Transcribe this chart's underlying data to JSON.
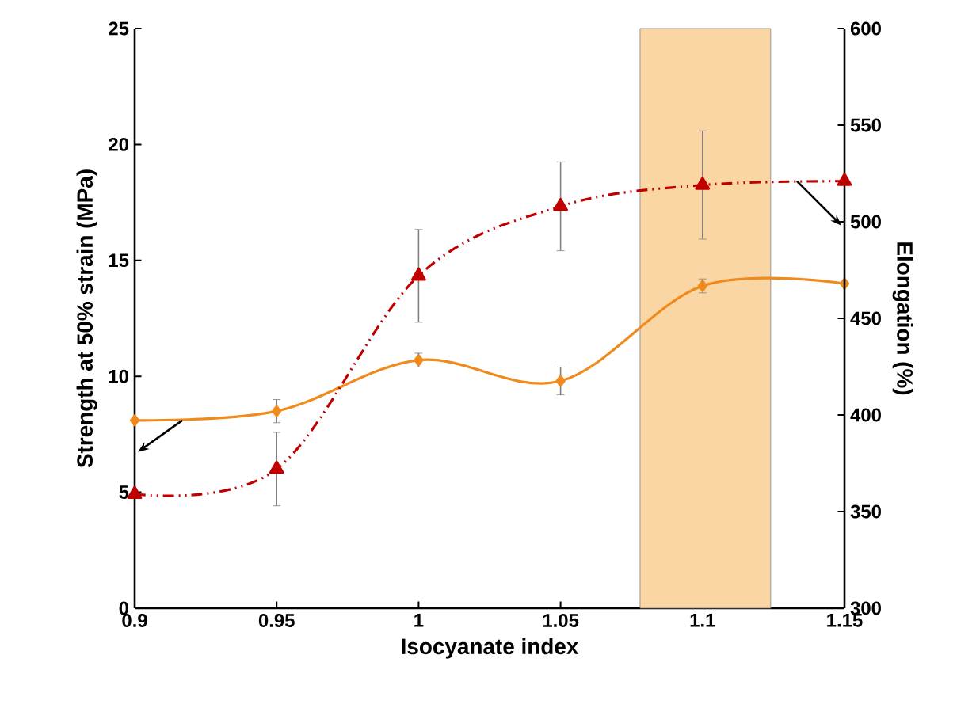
{
  "chart_data": {
    "type": "line",
    "xlabel": "Isocyanate index",
    "ylabel": "Strength at 50% strain (MPa)",
    "y2label": "Elongation (%)",
    "x": [
      0.9,
      0.95,
      1,
      1.05,
      1.1,
      1.15
    ],
    "xlim": [
      0.9,
      1.15
    ],
    "xticks": [
      0.9,
      0.95,
      1,
      1.05,
      1.1,
      1.15
    ],
    "ylim": [
      0,
      25
    ],
    "yticks": [
      0,
      5,
      10,
      15,
      20,
      25
    ],
    "y2lim": [
      300,
      600
    ],
    "y2ticks": [
      300,
      350,
      400,
      450,
      500,
      550,
      600
    ],
    "series": [
      {
        "color": "#f08a1c",
        "values": [
          8.1,
          8.5,
          10.7,
          9.8,
          13.9,
          14.0
        ],
        "errors": [
          null,
          0.5,
          0.3,
          0.6,
          0.3,
          null
        ],
        "marker": "diamond",
        "line_style": "solid"
      },
      {
        "color": "#c00000",
        "axis": "y2",
        "values": [
          359,
          372,
          472,
          508,
          519,
          521
        ],
        "errors": [
          null,
          19,
          24,
          23,
          28,
          null
        ],
        "marker": "triangle",
        "line_style": "dashed"
      }
    ],
    "bands": [
      {
        "axis": "x",
        "from": 1.078,
        "to": 1.124,
        "color": "#f9d6a3"
      }
    ]
  }
}
